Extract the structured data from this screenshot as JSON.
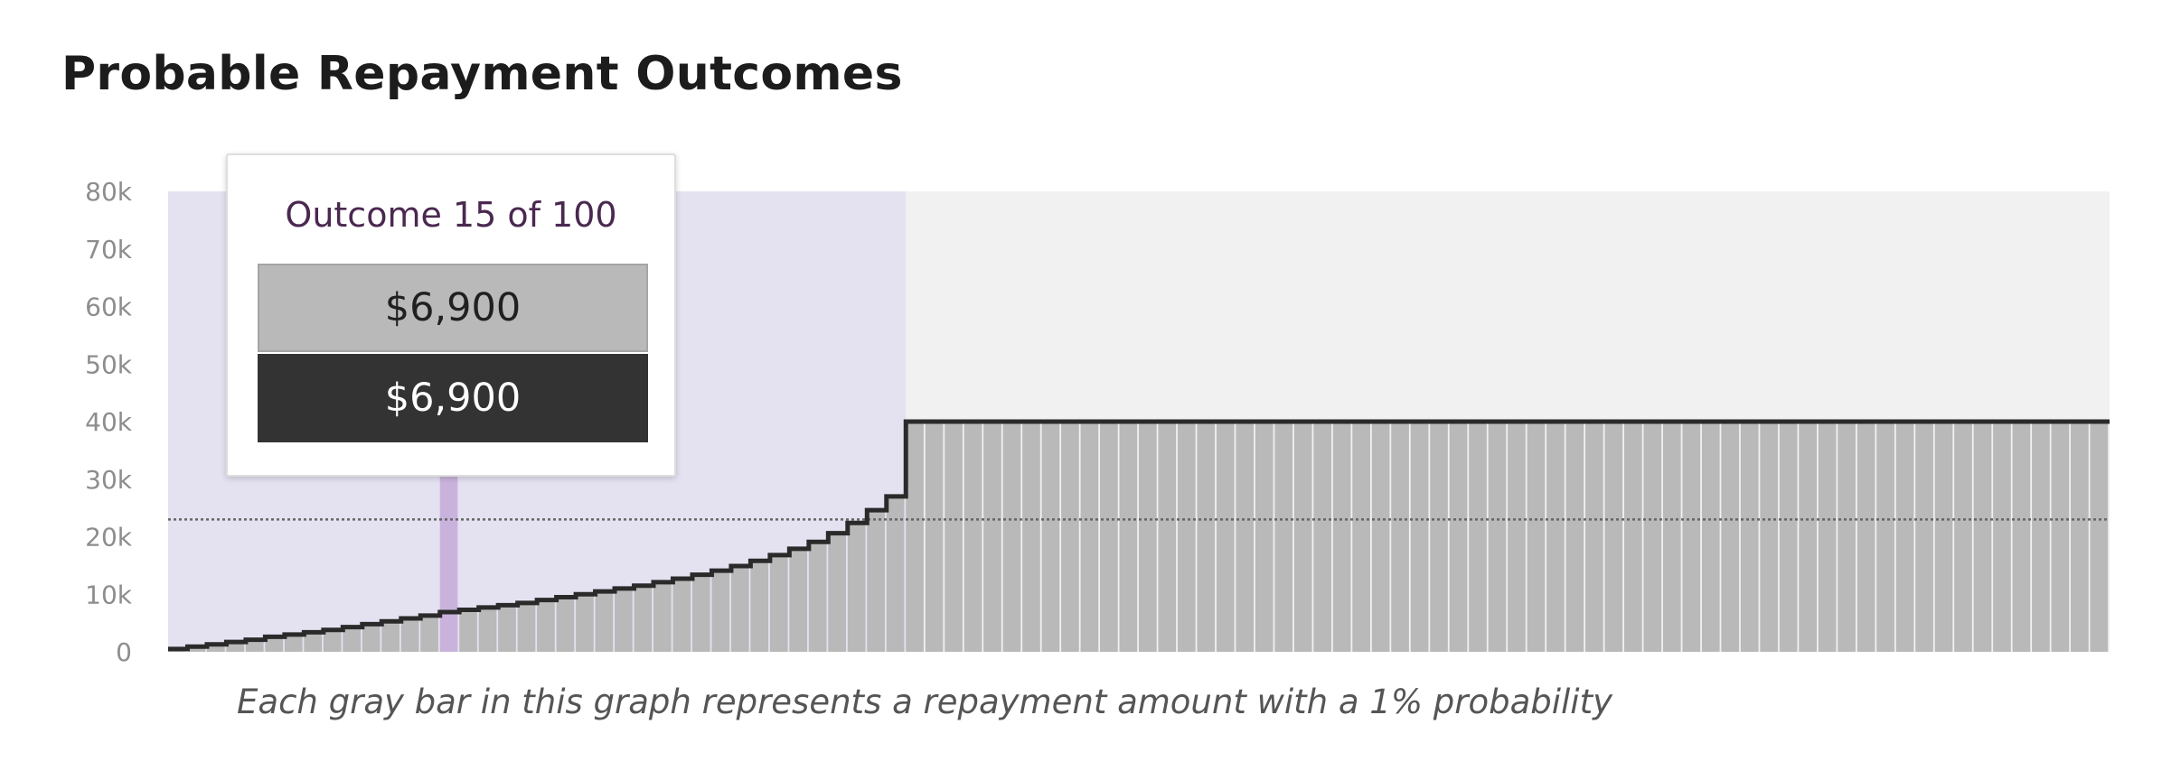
{
  "page": {
    "title": "Probable Repayment Outcomes",
    "caption": "Each gray bar in this graph represents a repayment amount with a 1% probability"
  },
  "tooltip": {
    "title": "Outcome 15 of 100",
    "value_light": "$6,900",
    "value_dark": "$6,900"
  },
  "colors": {
    "bar_fill": "#b9b9b9",
    "bar_separator": "#f2f2f2",
    "outline": "#2a2a2a",
    "plot_background": "#f1f1f1",
    "highlight_band": "#e4e2f1",
    "selected_bar": "#c9b3dc",
    "reference_line": "#666666"
  },
  "chart_data": {
    "type": "bar",
    "title": "Probable Repayment Outcomes",
    "caption": "Each gray bar in this graph represents a repayment amount with a 1% probability",
    "x": [
      1,
      2,
      3,
      4,
      5,
      6,
      7,
      8,
      9,
      10,
      11,
      12,
      13,
      14,
      15,
      16,
      17,
      18,
      19,
      20,
      21,
      22,
      23,
      24,
      25,
      26,
      27,
      28,
      29,
      30,
      31,
      32,
      33,
      34,
      35,
      36,
      37,
      38,
      39,
      40,
      41,
      42,
      43,
      44,
      45,
      46,
      47,
      48,
      49,
      50,
      51,
      52,
      53,
      54,
      55,
      56,
      57,
      58,
      59,
      60,
      61,
      62,
      63,
      64,
      65,
      66,
      67,
      68,
      69,
      70,
      71,
      72,
      73,
      74,
      75,
      76,
      77,
      78,
      79,
      80,
      81,
      82,
      83,
      84,
      85,
      86,
      87,
      88,
      89,
      90,
      91,
      92,
      93,
      94,
      95,
      96,
      97,
      98,
      99,
      100
    ],
    "values": [
      500,
      900,
      1300,
      1700,
      2100,
      2600,
      3000,
      3400,
      3800,
      4300,
      4800,
      5300,
      5800,
      6300,
      6900,
      7300,
      7700,
      8100,
      8500,
      9000,
      9500,
      10000,
      10500,
      11000,
      11500,
      12100,
      12700,
      13400,
      14100,
      14900,
      15800,
      16800,
      17900,
      19100,
      20600,
      22400,
      24600,
      27000,
      40000,
      40000,
      40000,
      40000,
      40000,
      40000,
      40000,
      40000,
      40000,
      40000,
      40000,
      40000,
      40000,
      40000,
      40000,
      40000,
      40000,
      40000,
      40000,
      40000,
      40000,
      40000,
      40000,
      40000,
      40000,
      40000,
      40000,
      40000,
      40000,
      40000,
      40000,
      40000,
      40000,
      40000,
      40000,
      40000,
      40000,
      40000,
      40000,
      40000,
      40000,
      40000,
      40000,
      40000,
      40000,
      40000,
      40000,
      40000,
      40000,
      40000,
      40000,
      40000,
      40000,
      40000,
      40000,
      40000,
      40000,
      40000,
      40000,
      40000,
      40000,
      40000
    ],
    "selected_index": 15,
    "highlight_range": [
      1,
      38
    ],
    "reference_line_value": 23000,
    "ylim": [
      0,
      80000
    ],
    "y_ticks": [
      0,
      10000,
      20000,
      30000,
      40000,
      50000,
      60000,
      70000,
      80000
    ],
    "y_tick_labels": [
      "0",
      "10k",
      "20k",
      "30k",
      "40k",
      "50k",
      "60k",
      "70k",
      "80k"
    ],
    "xlabel": "",
    "ylabel": "",
    "grid": false,
    "legend": "none"
  }
}
